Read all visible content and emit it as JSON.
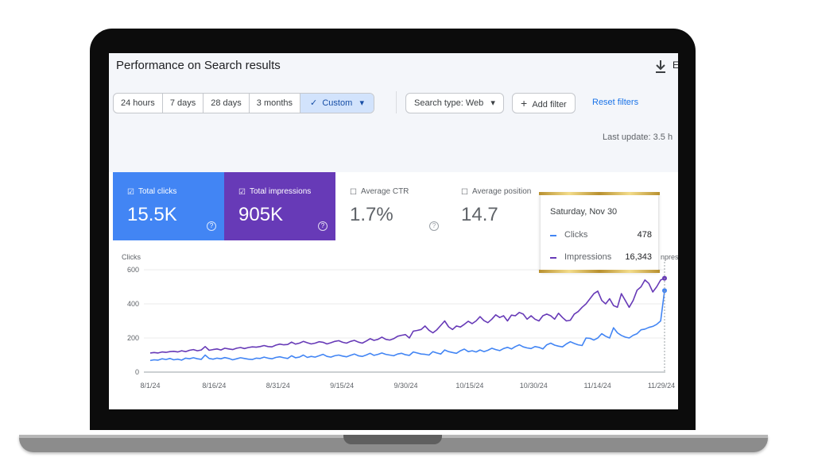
{
  "header": {
    "title": "Performance on Search results",
    "export_label": "E"
  },
  "filters": {
    "date_ranges": [
      "24 hours",
      "7 days",
      "28 days",
      "3 months"
    ],
    "custom_label": "Custom",
    "search_type": "Search type: Web",
    "add_filter": "Add filter",
    "reset": "Reset filters"
  },
  "last_update": "Last update: 3.5 h",
  "cards": [
    {
      "label": "Total clicks",
      "value": "15.5K",
      "checked": true
    },
    {
      "label": "Total impressions",
      "value": "905K",
      "checked": true
    },
    {
      "label": "Average CTR",
      "value": "1.7%",
      "checked": false
    },
    {
      "label": "Average position",
      "value": "14.7",
      "checked": false
    }
  ],
  "tooltip": {
    "date": "Saturday, Nov 30",
    "rows": [
      {
        "name": "Clicks",
        "value": "478"
      },
      {
        "name": "Impressions",
        "value": "16,343"
      }
    ]
  },
  "colors": {
    "clicks": "#4285f4",
    "impressions": "#673ab7",
    "accent": "#1a73e8"
  },
  "chart_data": {
    "type": "line",
    "ylabel": "Clicks",
    "right_label_partial": "npres",
    "ylim": [
      0,
      600
    ],
    "yticks": [
      "0",
      "200",
      "400",
      "600"
    ],
    "x_ticks": [
      "8/1/24",
      "8/16/24",
      "8/31/24",
      "9/15/24",
      "9/30/24",
      "10/15/24",
      "10/30/24",
      "11/14/24",
      "11/29/24"
    ],
    "x_range": [
      "2024-08-01",
      "2024-11-30"
    ],
    "series": [
      {
        "name": "Clicks",
        "values": [
          68,
          72,
          70,
          78,
          74,
          80,
          72,
          76,
          70,
          82,
          78,
          84,
          78,
          75,
          100,
          80,
          76,
          82,
          78,
          85,
          80,
          72,
          78,
          84,
          80,
          76,
          74,
          82,
          80,
          88,
          82,
          78,
          86,
          90,
          84,
          80,
          96,
          84,
          88,
          100,
          86,
          92,
          88,
          96,
          104,
          92,
          88,
          96,
          100,
          94,
          90,
          98,
          106,
          96,
          92,
          100,
          110,
          98,
          104,
          112,
          104,
          100,
          96,
          106,
          110,
          102,
          98,
          118,
          112,
          106,
          104,
          100,
          120,
          112,
          106,
          130,
          120,
          115,
          110,
          125,
          135,
          120,
          125,
          118,
          130,
          120,
          128,
          140,
          132,
          126,
          138,
          145,
          136,
          150,
          160,
          148,
          142,
          138,
          150,
          145,
          136,
          160,
          170,
          158,
          152,
          148,
          165,
          178,
          168,
          160,
          156,
          200,
          198,
          188,
          200,
          225,
          210,
          200,
          260,
          230,
          215,
          205,
          200,
          216,
          225,
          248,
          252,
          262,
          268,
          280,
          300,
          478
        ]
      },
      {
        "name": "Impressions",
        "values": [
          112,
          115,
          112,
          118,
          116,
          120,
          122,
          118,
          125,
          120,
          128,
          132,
          125,
          130,
          150,
          128,
          132,
          136,
          130,
          140,
          136,
          132,
          140,
          144,
          138,
          144,
          148,
          146,
          150,
          156,
          150,
          148,
          158,
          164,
          160,
          162,
          176,
          164,
          170,
          180,
          172,
          165,
          170,
          178,
          175,
          165,
          172,
          180,
          184,
          175,
          170,
          180,
          186,
          176,
          170,
          182,
          196,
          186,
          192,
          205,
          192,
          188,
          196,
          210,
          216,
          220,
          200,
          240,
          244,
          250,
          270,
          245,
          230,
          248,
          274,
          300,
          265,
          250,
          270,
          264,
          280,
          298,
          284,
          300,
          325,
          302,
          290,
          310,
          336,
          320,
          330,
          300,
          334,
          330,
          350,
          340,
          310,
          330,
          310,
          300,
          330,
          340,
          330,
          310,
          345,
          320,
          300,
          304,
          340,
          355,
          380,
          400,
          430,
          460,
          475,
          420,
          400,
          430,
          390,
          380,
          460,
          420,
          380,
          420,
          480,
          500,
          540,
          520,
          470,
          500,
          540,
          550
        ]
      }
    ]
  }
}
